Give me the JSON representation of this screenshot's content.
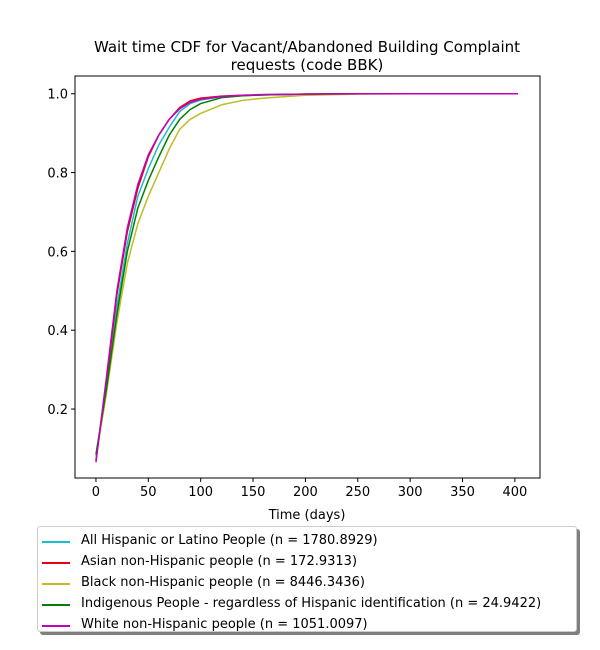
{
  "chart_data": {
    "type": "line",
    "title_line1": "Wait time CDF for Vacant/Abandoned Building Complaint",
    "title_line2": "requests (code BBK)",
    "xlabel": "Time (days)",
    "ylabel": "",
    "xlim": [
      -20,
      424
    ],
    "ylim": [
      0.025,
      1.045
    ],
    "xticks": [
      0,
      50,
      100,
      150,
      200,
      250,
      300,
      350,
      400
    ],
    "yticks": [
      0.2,
      0.4,
      0.6,
      0.8,
      1.0
    ],
    "ytick_labels": [
      "0.2",
      "0.4",
      "0.6",
      "0.8",
      "1.0"
    ],
    "grid": false,
    "legend_position": "below",
    "series": [
      {
        "name": "All Hispanic or Latino People (n = 1780.8929)",
        "color": "#17becf",
        "x": [
          0,
          10,
          20,
          30,
          40,
          50,
          60,
          70,
          80,
          90,
          100,
          120,
          140,
          160,
          200,
          250,
          300,
          350,
          403
        ],
        "y": [
          0.08,
          0.26,
          0.46,
          0.62,
          0.74,
          0.81,
          0.87,
          0.915,
          0.955,
          0.975,
          0.984,
          0.992,
          0.995,
          0.997,
          0.999,
          1.0,
          1.0,
          1.0,
          1.0
        ]
      },
      {
        "name": "Asian non-Hispanic people (n = 172.9313)",
        "color": "#e6000f",
        "x": [
          0,
          10,
          20,
          30,
          40,
          50,
          60,
          70,
          80,
          90,
          100,
          120,
          140,
          160,
          200,
          250,
          300,
          350,
          403
        ],
        "y": [
          0.07,
          0.27,
          0.49,
          0.65,
          0.76,
          0.84,
          0.895,
          0.935,
          0.965,
          0.982,
          0.989,
          0.994,
          0.996,
          0.997,
          0.999,
          1.0,
          1.0,
          1.0,
          1.0
        ]
      },
      {
        "name": "Black non-Hispanic people (n = 8446.3436)",
        "color": "#bcbd22",
        "x": [
          0,
          10,
          20,
          30,
          40,
          50,
          60,
          70,
          80,
          90,
          100,
          120,
          140,
          160,
          200,
          250,
          300,
          350,
          403
        ],
        "y": [
          0.075,
          0.24,
          0.42,
          0.57,
          0.67,
          0.74,
          0.8,
          0.86,
          0.91,
          0.935,
          0.95,
          0.972,
          0.983,
          0.989,
          0.996,
          0.999,
          1.0,
          1.0,
          1.0
        ]
      },
      {
        "name": "Indigenous People - regardless of Hispanic identification (n = 24.9422)",
        "color": "#008000",
        "x": [
          0,
          10,
          20,
          30,
          40,
          50,
          60,
          70,
          80,
          90,
          100,
          120,
          140,
          160,
          200,
          250,
          300,
          350,
          403
        ],
        "y": [
          0.085,
          0.25,
          0.44,
          0.6,
          0.71,
          0.78,
          0.84,
          0.895,
          0.935,
          0.96,
          0.975,
          0.99,
          0.995,
          0.997,
          0.999,
          1.0,
          1.0,
          1.0,
          1.0
        ]
      },
      {
        "name": "White non-Hispanic people (n = 1051.0097)",
        "color": "#bf00bf",
        "x": [
          0,
          10,
          20,
          30,
          40,
          50,
          60,
          70,
          80,
          90,
          100,
          120,
          140,
          160,
          200,
          250,
          300,
          350,
          403
        ],
        "y": [
          0.065,
          0.28,
          0.5,
          0.66,
          0.77,
          0.845,
          0.895,
          0.935,
          0.962,
          0.978,
          0.986,
          0.993,
          0.996,
          0.998,
          0.999,
          1.0,
          1.0,
          1.0,
          1.0
        ]
      }
    ]
  }
}
